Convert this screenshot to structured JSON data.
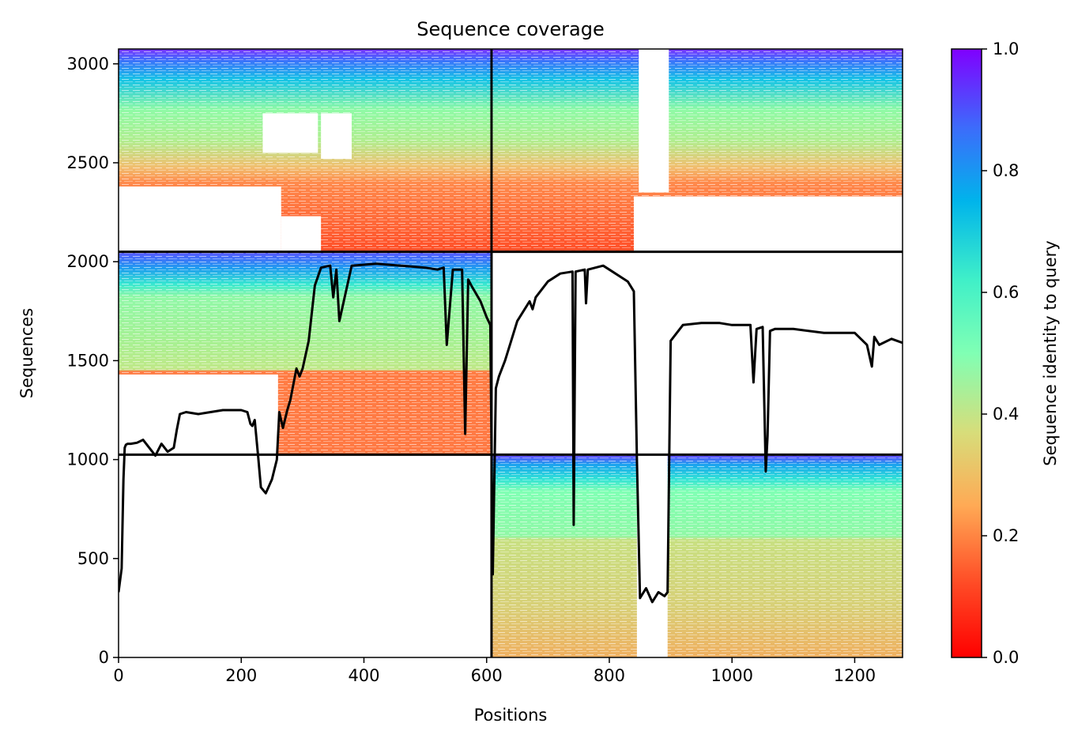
{
  "chart_data": {
    "type": "heatmap",
    "title": "Sequence coverage",
    "xlabel": "Positions",
    "ylabel": "Sequences",
    "colorbar_label": "Sequence identity to query",
    "colormap": "rainbow_r",
    "xlim": [
      0,
      1278
    ],
    "ylim": [
      0,
      3075
    ],
    "xticks": [
      0,
      200,
      400,
      600,
      800,
      1000,
      1200
    ],
    "yticks": [
      0,
      500,
      1000,
      1500,
      2000,
      2500,
      3000
    ],
    "colorbar_ticks": [
      "0.0",
      "0.2",
      "0.4",
      "0.6",
      "0.8",
      "1.0"
    ],
    "grid": false,
    "boundaries": {
      "x_chain_break": 608,
      "y_group_breaks": [
        1025,
        2050
      ]
    },
    "blocks": [
      {
        "name": "block-top-left",
        "x": [
          0,
          608
        ],
        "y": [
          2050,
          3075
        ],
        "identity_range": [
          0.1,
          0.95
        ]
      },
      {
        "name": "block-top-right",
        "x": [
          608,
          1278
        ],
        "y": [
          2050,
          3075
        ],
        "identity_range": [
          0.1,
          0.95
        ]
      },
      {
        "name": "block-mid-left",
        "x": [
          0,
          608
        ],
        "y": [
          1025,
          2050
        ],
        "identity_range": [
          0.2,
          0.95
        ]
      },
      {
        "name": "block-bottom-right",
        "x": [
          608,
          1278
        ],
        "y": [
          0,
          1025
        ],
        "identity_range": [
          0.3,
          0.95
        ]
      }
    ],
    "coverage_line": {
      "color": "#000000",
      "x": [
        0,
        5,
        8,
        10,
        12,
        15,
        20,
        30,
        40,
        50,
        60,
        70,
        80,
        90,
        95,
        100,
        110,
        130,
        150,
        170,
        200,
        210,
        215,
        218,
        222,
        228,
        232,
        240,
        250,
        258,
        262,
        268,
        275,
        280,
        290,
        295,
        300,
        310,
        320,
        330,
        345,
        350,
        355,
        360,
        380,
        420,
        460,
        500,
        520,
        530,
        535,
        545,
        560,
        565,
        570,
        575,
        590,
        600,
        606,
        610,
        615,
        620,
        630,
        640,
        650,
        660,
        670,
        675,
        680,
        700,
        720,
        740,
        742,
        745,
        760,
        762,
        765,
        790,
        800,
        830,
        840,
        845,
        850,
        860,
        870,
        880,
        890,
        895,
        900,
        920,
        950,
        980,
        1000,
        1030,
        1035,
        1040,
        1050,
        1055,
        1058,
        1062,
        1070,
        1100,
        1150,
        1200,
        1220,
        1228,
        1232,
        1240,
        1260,
        1278
      ],
      "y": [
        330,
        450,
        900,
        1060,
        1075,
        1080,
        1080,
        1085,
        1100,
        1060,
        1020,
        1080,
        1040,
        1060,
        1150,
        1230,
        1240,
        1230,
        1240,
        1250,
        1250,
        1240,
        1180,
        1170,
        1200,
        1000,
        860,
        830,
        900,
        1000,
        1240,
        1160,
        1250,
        1300,
        1460,
        1420,
        1460,
        1600,
        1880,
        1970,
        1980,
        1820,
        1960,
        1700,
        1980,
        1990,
        1980,
        1970,
        1960,
        1970,
        1580,
        1960,
        1960,
        1130,
        1910,
        1880,
        1800,
        1720,
        1680,
        420,
        1360,
        1420,
        1500,
        1600,
        1700,
        1750,
        1800,
        1760,
        1820,
        1900,
        1940,
        1950,
        670,
        1950,
        1960,
        1790,
        1960,
        1980,
        1960,
        1900,
        1850,
        1000,
        300,
        350,
        280,
        330,
        310,
        330,
        1600,
        1680,
        1690,
        1690,
        1680,
        1680,
        1390,
        1660,
        1670,
        940,
        1120,
        1650,
        1660,
        1660,
        1640,
        1640,
        1580,
        1470,
        1620,
        1580,
        1610,
        1590
      ]
    }
  }
}
